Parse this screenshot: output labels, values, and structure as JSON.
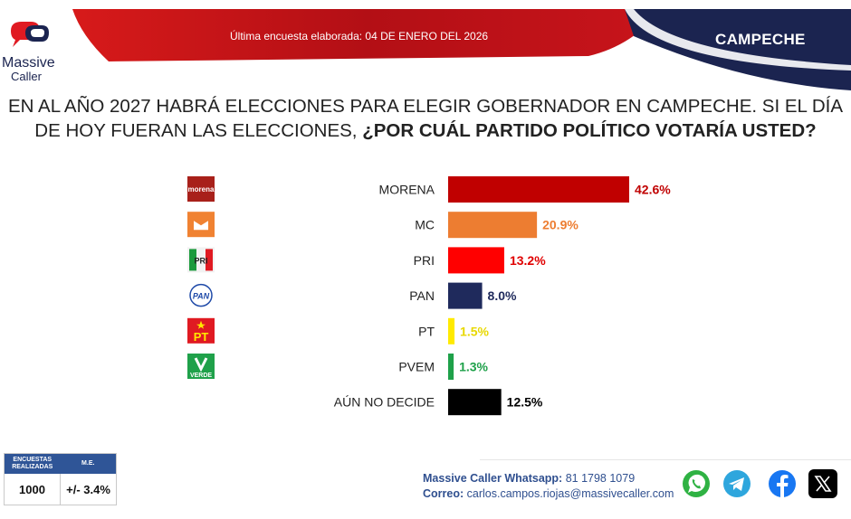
{
  "header": {
    "brand_line1": "Massive",
    "brand_line2": "Caller",
    "survey_date": "Última encuesta elaborada: 04 DE ENERO DEL 2026",
    "state": "CAMPECHE"
  },
  "question": {
    "part1": "EN AL AÑO 2027 HABRÁ ELECCIONES PARA ELEGIR GOBERNADOR EN CAMPECHE. SI EL DÍA DE HOY FUERAN LAS ELECCIONES,",
    "part2": "¿POR CUÁL PARTIDO POLÍTICO VOTARÍA USTED?"
  },
  "chart_data": {
    "type": "bar",
    "orientation": "horizontal",
    "categories": [
      "MORENA",
      "MC",
      "PRI",
      "PAN",
      "PT",
      "PVEM",
      "AÚN NO DECIDE"
    ],
    "values": [
      42.6,
      20.9,
      13.2,
      8.0,
      1.5,
      1.3,
      12.5
    ],
    "value_labels": [
      "42.6%",
      "20.9%",
      "13.2%",
      "8.0%",
      "1.5%",
      "1.3%",
      "12.5%"
    ],
    "colors": [
      "#c00000",
      "#ed7d31",
      "#ff0000",
      "#1f2a5c",
      "#ffea00",
      "#1fa14a",
      "#000000"
    ],
    "label_colors": [
      "#c00000",
      "#ed7d31",
      "#e00000",
      "#1f2a5c",
      "#e8d800",
      "#1fa14a",
      "#000000"
    ],
    "party_logos": [
      "morena",
      "MC",
      "PRI",
      "PAN",
      "PT",
      "VERDE",
      ""
    ],
    "title": "",
    "xlabel": "",
    "ylabel": "",
    "grid": false
  },
  "footer": {
    "table_header_1": "ENCUESTAS REALIZADAS",
    "table_header_2": "M.E.",
    "table_value_1": "1000",
    "table_value_2": "+/- 3.4%",
    "whatsapp_label": "Massive Caller Whatsapp:",
    "whatsapp_number": "81 1798 1079",
    "email_label": "Correo:",
    "email": "carlos.campos.riojas@massivecaller.com",
    "social_icons": [
      "whatsapp-icon",
      "telegram-icon",
      "facebook-icon",
      "x-icon"
    ]
  }
}
